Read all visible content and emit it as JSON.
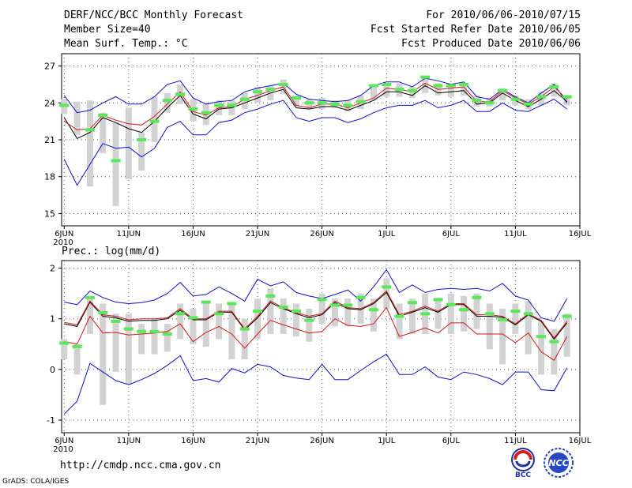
{
  "header": {
    "title": "DERF/NCC/BCC Monthly Forecast",
    "member": "Member Size=40",
    "variable": "Mean Surf. Temp.: °C",
    "period": "For 2010/06/06-2010/07/15",
    "started": "Fcst Started Refer Date 2010/06/05",
    "produced": "Fcst Produced Date 2010/06/06"
  },
  "footer": {
    "url": "http://cmdp.ncc.cma.gov.cn",
    "grads": "GrADS: COLA/IGES",
    "logo_bcc": "BCC",
    "logo_ncc": "NCC"
  },
  "colors": {
    "envelope": "#1010c8",
    "mean": "#000000",
    "median": "#d01818",
    "marker": "#58e858",
    "box": "#d2d2d2",
    "grid": "#555555"
  },
  "chart_data": [
    {
      "type": "line",
      "title": "Mean Surf. Temp.: °C",
      "x": [
        1,
        2,
        3,
        4,
        5,
        6,
        7,
        8,
        9,
        10,
        11,
        12,
        13,
        14,
        15,
        16,
        17,
        18,
        19,
        20,
        21,
        22,
        23,
        24,
        25,
        26,
        27,
        28,
        29,
        30,
        31,
        32,
        33,
        34,
        35,
        36,
        37,
        38,
        39,
        40
      ],
      "xticks": [
        {
          "x": 1,
          "label": "6JUN",
          "sub": "2010"
        },
        {
          "x": 6,
          "label": "11JUN"
        },
        {
          "x": 11,
          "label": "16JUN"
        },
        {
          "x": 16,
          "label": "21JUN"
        },
        {
          "x": 21,
          "label": "26JUN"
        },
        {
          "x": 26,
          "label": "1JUL"
        },
        {
          "x": 31,
          "label": "6JUL"
        },
        {
          "x": 36,
          "label": "11JUL"
        },
        {
          "x": 41,
          "label": "16JUL"
        }
      ],
      "xlim": [
        0.8,
        41
      ],
      "ylim": [
        14,
        28
      ],
      "yticks": [
        15,
        18,
        21,
        24,
        27
      ],
      "series": [
        {
          "name": "max",
          "values": [
            24.6,
            23.2,
            23.4,
            24.0,
            24.5,
            23.9,
            23.9,
            24.5,
            25.5,
            25.8,
            24.4,
            23.9,
            24.1,
            24.2,
            24.9,
            25.2,
            25.4,
            25.6,
            24.7,
            24.3,
            24.2,
            24.1,
            24.2,
            24.6,
            25.4,
            25.7,
            25.7,
            25.3,
            26.0,
            25.8,
            25.5,
            25.7,
            24.5,
            24.3,
            25.1,
            24.5,
            24.0,
            24.8,
            25.5,
            24.0
          ]
        },
        {
          "name": "mean",
          "values": [
            22.8,
            21.1,
            21.6,
            22.8,
            22.4,
            21.9,
            21.6,
            22.5,
            23.6,
            24.6,
            23.1,
            22.7,
            23.5,
            23.6,
            24.0,
            24.4,
            24.8,
            25.1,
            23.6,
            23.5,
            23.7,
            23.7,
            23.4,
            23.8,
            24.2,
            24.9,
            24.9,
            24.6,
            25.4,
            24.8,
            24.9,
            25.0,
            23.9,
            24.0,
            24.8,
            24.2,
            23.7,
            24.3,
            25.0,
            24.1
          ]
        },
        {
          "name": "median",
          "values": [
            22.5,
            21.8,
            21.9,
            23.0,
            22.6,
            22.3,
            22.2,
            22.9,
            23.9,
            24.9,
            23.3,
            23.0,
            23.6,
            23.7,
            24.3,
            24.6,
            25.0,
            25.3,
            23.8,
            23.6,
            23.9,
            23.9,
            23.6,
            24.0,
            24.4,
            25.2,
            25.1,
            24.9,
            25.6,
            25.1,
            25.2,
            25.3,
            24.1,
            24.1,
            25.0,
            24.4,
            23.9,
            24.5,
            25.3,
            24.3
          ]
        },
        {
          "name": "min",
          "values": [
            19.4,
            17.3,
            19.0,
            20.7,
            20.3,
            20.4,
            19.6,
            20.3,
            22.0,
            22.5,
            21.4,
            21.4,
            22.4,
            22.6,
            23.2,
            23.5,
            23.9,
            24.2,
            22.8,
            22.5,
            22.8,
            22.8,
            22.4,
            22.7,
            23.2,
            23.6,
            23.8,
            23.8,
            24.2,
            23.6,
            23.8,
            24.2,
            23.3,
            23.3,
            24.0,
            23.4,
            23.3,
            23.8,
            24.3,
            23.5
          ]
        }
      ],
      "markers": [
        23.8,
        null,
        21.8,
        23.0,
        19.3,
        null,
        21.0,
        22.5,
        24.2,
        24.7,
        23.5,
        23.2,
        23.8,
        23.8,
        24.3,
        24.9,
        25.1,
        25.5,
        24.4,
        24.0,
        24.0,
        23.9,
        23.8,
        24.1,
        25.4,
        25.5,
        25.1,
        25.0,
        26.1,
        25.4,
        25.4,
        25.5,
        24.2,
        24.0,
        25.0,
        24.3,
        23.9,
        24.5,
        25.3,
        24.5
      ],
      "boxes": [
        [
          23.1,
          24.3
        ],
        [
          21.4,
          24.1
        ],
        [
          17.2,
          24.2
        ],
        [
          19.9,
          23.2
        ],
        [
          15.6,
          22.4
        ],
        [
          17.8,
          23.6
        ],
        [
          18.5,
          21.6
        ],
        [
          20.8,
          24.5
        ],
        [
          23.2,
          24.8
        ],
        [
          23.9,
          25.5
        ],
        [
          22.5,
          24.3
        ],
        [
          22.2,
          23.9
        ],
        [
          23.0,
          24.2
        ],
        [
          23.0,
          24.2
        ],
        [
          23.5,
          24.8
        ],
        [
          24.0,
          25.3
        ],
        [
          24.2,
          25.4
        ],
        [
          24.7,
          25.9
        ],
        [
          23.7,
          24.6
        ],
        [
          23.5,
          24.3
        ],
        [
          23.5,
          24.4
        ],
        [
          23.6,
          24.2
        ],
        [
          23.3,
          24.2
        ],
        [
          23.5,
          24.6
        ],
        [
          24.2,
          25.5
        ],
        [
          24.5,
          25.6
        ],
        [
          24.5,
          25.6
        ],
        [
          24.4,
          25.3
        ],
        [
          24.8,
          26.0
        ],
        [
          24.6,
          25.6
        ],
        [
          24.5,
          25.6
        ],
        [
          24.6,
          25.6
        ],
        [
          23.7,
          24.6
        ],
        [
          23.7,
          24.4
        ],
        [
          24.2,
          25.2
        ],
        [
          23.8,
          24.6
        ],
        [
          23.5,
          24.3
        ],
        [
          23.8,
          24.9
        ],
        [
          24.5,
          25.6
        ],
        [
          23.8,
          24.6
        ]
      ]
    },
    {
      "type": "line",
      "title": "Prec.: log(mm/d)",
      "x": [
        1,
        2,
        3,
        4,
        5,
        6,
        7,
        8,
        9,
        10,
        11,
        12,
        13,
        14,
        15,
        16,
        17,
        18,
        19,
        20,
        21,
        22,
        23,
        24,
        25,
        26,
        27,
        28,
        29,
        30,
        31,
        32,
        33,
        34,
        35,
        36,
        37,
        38,
        39,
        40
      ],
      "xticks": [
        {
          "x": 1,
          "label": "6JUN",
          "sub": "2010"
        },
        {
          "x": 6,
          "label": "11JUN"
        },
        {
          "x": 11,
          "label": "16JUN"
        },
        {
          "x": 16,
          "label": "21JUN"
        },
        {
          "x": 21,
          "label": "26JUN"
        },
        {
          "x": 26,
          "label": "1JUL"
        },
        {
          "x": 31,
          "label": "6JUL"
        },
        {
          "x": 36,
          "label": "11JUL"
        },
        {
          "x": 41,
          "label": "16JUL"
        }
      ],
      "xlim": [
        0.8,
        41
      ],
      "ylim": [
        -1.25,
        2.15
      ],
      "yticks": [
        -1,
        0,
        1,
        2
      ],
      "series": [
        {
          "name": "max",
          "values": [
            1.33,
            1.28,
            1.55,
            1.42,
            1.33,
            1.3,
            1.32,
            1.37,
            1.5,
            1.72,
            1.45,
            1.48,
            1.63,
            1.5,
            1.35,
            1.78,
            1.65,
            1.73,
            1.52,
            1.45,
            1.4,
            1.48,
            1.57,
            1.35,
            1.63,
            1.97,
            1.52,
            1.67,
            1.52,
            1.58,
            1.6,
            1.58,
            1.6,
            1.55,
            1.7,
            1.45,
            1.37,
            1.02,
            0.95,
            1.4
          ]
        },
        {
          "name": "mean",
          "values": [
            0.9,
            0.85,
            1.33,
            1.05,
            1.02,
            0.95,
            0.97,
            0.97,
            1.0,
            1.17,
            0.98,
            0.98,
            1.13,
            1.13,
            0.78,
            1.02,
            1.32,
            1.2,
            1.1,
            1.02,
            1.08,
            1.32,
            1.2,
            1.18,
            1.3,
            1.52,
            1.05,
            1.13,
            1.22,
            1.13,
            1.28,
            1.28,
            1.05,
            1.05,
            1.03,
            0.88,
            1.08,
            0.95,
            0.6,
            0.92
          ]
        },
        {
          "name": "median",
          "values": [
            0.93,
            0.88,
            1.35,
            1.08,
            1.05,
            0.98,
            1.0,
            1.0,
            1.02,
            1.2,
            1.0,
            1.0,
            1.15,
            1.15,
            0.8,
            1.05,
            1.35,
            1.22,
            1.12,
            1.05,
            1.1,
            1.35,
            1.22,
            1.2,
            1.32,
            1.55,
            1.08,
            1.15,
            1.25,
            1.15,
            1.3,
            1.3,
            1.08,
            1.08,
            1.05,
            0.9,
            1.1,
            0.97,
            0.62,
            0.95
          ]
        },
        {
          "name": "p25",
          "values": [
            0.55,
            0.5,
            1.05,
            0.72,
            0.73,
            0.68,
            0.7,
            0.72,
            0.75,
            0.9,
            0.55,
            0.73,
            0.85,
            0.7,
            0.42,
            0.7,
            0.97,
            0.88,
            0.8,
            0.72,
            0.75,
            1.0,
            0.87,
            0.85,
            0.9,
            1.22,
            0.65,
            0.73,
            0.82,
            0.72,
            0.92,
            0.92,
            0.7,
            0.7,
            0.7,
            0.53,
            0.72,
            0.35,
            0.18,
            0.65
          ]
        },
        {
          "name": "min",
          "values": [
            -0.88,
            -0.63,
            0.12,
            -0.05,
            -0.22,
            -0.3,
            -0.2,
            -0.08,
            0.08,
            0.27,
            -0.22,
            -0.18,
            -0.25,
            0.02,
            -0.07,
            0.1,
            0.05,
            -0.12,
            -0.17,
            -0.2,
            0.1,
            -0.2,
            -0.2,
            -0.02,
            0.15,
            0.3,
            -0.1,
            -0.1,
            0.05,
            -0.15,
            -0.2,
            -0.05,
            -0.1,
            -0.18,
            -0.3,
            -0.05,
            -0.05,
            -0.4,
            -0.42,
            0.03
          ]
        }
      ],
      "markers": [
        0.52,
        0.45,
        1.42,
        1.12,
        0.95,
        0.8,
        0.75,
        0.75,
        0.7,
        1.1,
        1.02,
        1.33,
        1.1,
        1.3,
        0.8,
        1.15,
        1.45,
        1.23,
        1.15,
        0.97,
        1.38,
        1.27,
        1.27,
        1.42,
        1.18,
        1.63,
        1.05,
        1.32,
        1.1,
        1.38,
        1.28,
        1.18,
        1.42,
        1.1,
        0.98,
        1.15,
        1.1,
        0.65,
        0.55,
        1.05
      ],
      "boxes": [
        [
          0.2,
          0.6
        ],
        [
          -0.1,
          0.5
        ],
        [
          0.7,
          1.4
        ],
        [
          -0.7,
          1.3
        ],
        [
          -0.05,
          1.1
        ],
        [
          -0.3,
          1.1
        ],
        [
          0.3,
          0.9
        ],
        [
          0.3,
          1.0
        ],
        [
          0.35,
          0.9
        ],
        [
          0.6,
          1.3
        ],
        [
          0.5,
          1.2
        ],
        [
          0.45,
          1.35
        ],
        [
          0.6,
          1.3
        ],
        [
          0.2,
          1.3
        ],
        [
          0.2,
          1.0
        ],
        [
          0.6,
          1.4
        ],
        [
          0.7,
          1.6
        ],
        [
          0.7,
          1.4
        ],
        [
          0.65,
          1.3
        ],
        [
          0.55,
          1.2
        ],
        [
          0.9,
          1.5
        ],
        [
          0.85,
          1.4
        ],
        [
          0.85,
          1.4
        ],
        [
          0.9,
          1.5
        ],
        [
          0.75,
          1.4
        ],
        [
          1.2,
          1.8
        ],
        [
          0.6,
          1.3
        ],
        [
          0.7,
          1.4
        ],
        [
          0.7,
          1.5
        ],
        [
          0.8,
          1.4
        ],
        [
          0.7,
          1.5
        ],
        [
          0.75,
          1.45
        ],
        [
          0.8,
          1.5
        ],
        [
          0.4,
          1.3
        ],
        [
          0.1,
          1.2
        ],
        [
          0.7,
          1.3
        ],
        [
          0.3,
          1.35
        ],
        [
          -0.1,
          0.95
        ],
        [
          -0.1,
          0.8
        ],
        [
          0.25,
          1.1
        ]
      ]
    }
  ]
}
